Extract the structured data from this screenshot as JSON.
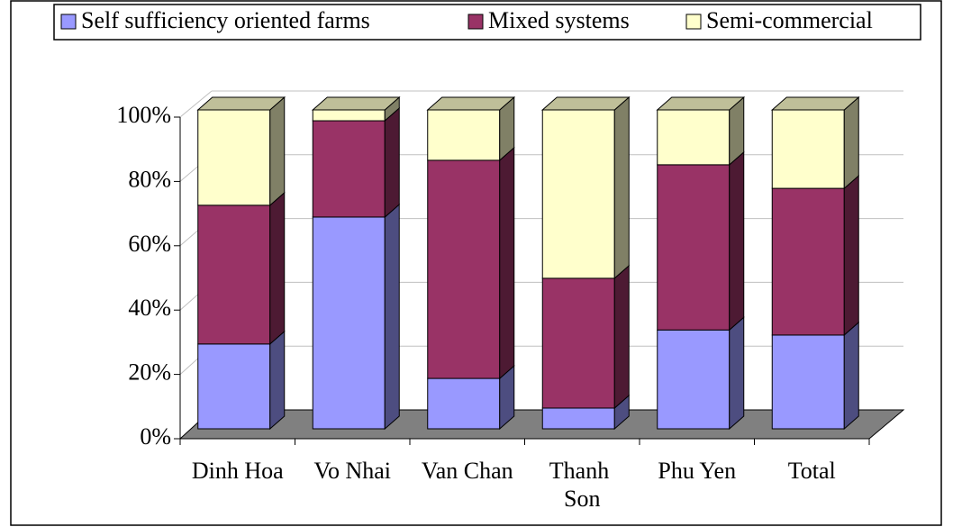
{
  "chart_data": {
    "type": "bar3d_stacked",
    "categories": [
      "Dinh Hoa",
      "Vo Nhai",
      "Van Chan",
      "Thanh Son",
      "Phu Yen",
      "Total"
    ],
    "series": [
      {
        "name": "Self sufficiency oriented farms",
        "color": "#9999ff",
        "values": [
          26.6,
          66.4,
          15.8,
          6.5,
          31,
          29.4
        ]
      },
      {
        "name": "Mixed systems",
        "color": "#993366",
        "values": [
          43.5,
          30.2,
          68.4,
          40.7,
          51.8,
          46
        ]
      },
      {
        "name": "Semi-commercial",
        "color": "#ffffcc",
        "values": [
          29.9,
          3.4,
          15.8,
          52.8,
          17.2,
          24.6
        ]
      }
    ],
    "ylim": [
      0,
      100
    ],
    "yticks": [
      {
        "value": 0,
        "label": "0%"
      },
      {
        "value": 20,
        "label": "20%"
      },
      {
        "value": 40,
        "label": "40%"
      },
      {
        "value": 60,
        "label": "60%"
      },
      {
        "value": 80,
        "label": "80%"
      },
      {
        "value": 100,
        "label": "100%"
      }
    ],
    "grid": true
  }
}
